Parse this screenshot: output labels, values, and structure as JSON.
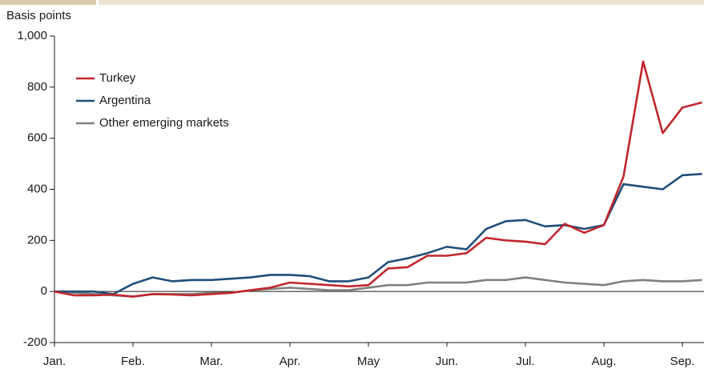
{
  "chart_data": {
    "type": "line",
    "y_label": "Basis points",
    "categories": [
      "Jan.",
      null,
      null,
      null,
      "Feb.",
      null,
      null,
      null,
      "Mar.",
      null,
      null,
      null,
      "Apr.",
      null,
      null,
      null,
      "May",
      null,
      null,
      null,
      "Jun.",
      null,
      null,
      null,
      "Jul.",
      null,
      null,
      null,
      "Aug.",
      null,
      null,
      null,
      "Sep.",
      null
    ],
    "series": [
      {
        "name": "Turkey",
        "color": "#c1272d",
        "values": [
          0,
          -15,
          -15,
          -12,
          -20,
          -10,
          -12,
          -15,
          -10,
          -5,
          5,
          15,
          35,
          30,
          25,
          20,
          25,
          90,
          95,
          140,
          140,
          150,
          210,
          200,
          195,
          185,
          265,
          230,
          260,
          450,
          900,
          620,
          720,
          740
        ]
      },
      {
        "name": "Argentina",
        "color": "#1f4e79",
        "values": [
          0,
          0,
          0,
          -10,
          30,
          55,
          40,
          45,
          45,
          50,
          55,
          65,
          65,
          60,
          40,
          40,
          55,
          115,
          130,
          150,
          175,
          165,
          245,
          275,
          280,
          255,
          260,
          245,
          260,
          420,
          410,
          400,
          455,
          460
        ]
      },
      {
        "name": "Other emerging markets",
        "color": "#808080",
        "values": [
          0,
          -5,
          -10,
          -15,
          -20,
          -10,
          -10,
          -10,
          -5,
          -5,
          5,
          10,
          15,
          10,
          5,
          5,
          15,
          25,
          25,
          35,
          35,
          35,
          45,
          45,
          55,
          45,
          35,
          30,
          25,
          40,
          45,
          40,
          40,
          45
        ]
      }
    ],
    "ylim": [
      -200,
      1000
    ],
    "yticks": [
      -200,
      0,
      200,
      400,
      600,
      800,
      {
        "value": 1000,
        "label": "1,000"
      }
    ],
    "zero_line": true
  }
}
